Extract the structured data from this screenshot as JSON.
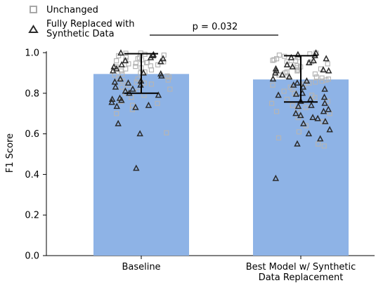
{
  "chart_data": {
    "type": "bar",
    "categories": [
      "Baseline",
      "Best Model w/ Synthetic\nData Replacement"
    ],
    "values": [
      0.895,
      0.868
    ],
    "error_bars": [
      {
        "lower": 0.8,
        "upper": 0.995
      },
      {
        "lower": 0.757,
        "upper": 0.985
      }
    ],
    "ylabel": "F1 Score",
    "xlabel": "",
    "ylim": [
      0.0,
      1.0
    ],
    "yticks": [
      "0.0",
      "0.2",
      "0.4",
      "0.6",
      "0.8",
      "1.0"
    ],
    "bar_color": "#8eb3e6",
    "significance": {
      "label": "p = 0.032",
      "between": [
        0,
        1
      ]
    },
    "legend": {
      "position": "top-left",
      "entries": [
        {
          "label": "Unchanged",
          "marker": "square",
          "color": "#a8a8a8"
        },
        {
          "label": "Fully Replaced with\nSynthetic Data",
          "marker": "triangle",
          "color": "#2b2b2b"
        }
      ]
    },
    "points": {
      "unchanged": [
        [
          0.998,
          0.992,
          0.985,
          0.978,
          0.97,
          0.965,
          0.96,
          0.955,
          0.95,
          0.948,
          0.945,
          0.94,
          0.935,
          0.93,
          0.925,
          0.92,
          0.915,
          0.91,
          0.905,
          0.9,
          0.895,
          0.89,
          0.885,
          0.88,
          0.875,
          0.87,
          0.865,
          0.86,
          0.855,
          0.85,
          0.845,
          0.84,
          0.83,
          0.82,
          0.81,
          0.8,
          0.79,
          0.78,
          0.76,
          0.75,
          0.74,
          0.72,
          0.7,
          0.605,
          0.997,
          0.988,
          0.975,
          0.962,
          0.952,
          0.932
        ],
        [
          0.998,
          0.994,
          0.988,
          0.982,
          0.976,
          0.97,
          0.965,
          0.96,
          0.955,
          0.95,
          0.945,
          0.94,
          0.935,
          0.93,
          0.925,
          0.92,
          0.915,
          0.91,
          0.905,
          0.9,
          0.895,
          0.89,
          0.885,
          0.88,
          0.875,
          0.87,
          0.865,
          0.86,
          0.855,
          0.85,
          0.845,
          0.84,
          0.83,
          0.82,
          0.81,
          0.8,
          0.79,
          0.78,
          0.77,
          0.76,
          0.75,
          0.74,
          0.73,
          0.72,
          0.71,
          0.7,
          0.68,
          0.66,
          0.64,
          0.61,
          0.58,
          0.55,
          0.54,
          0.955,
          0.962
        ]
      ],
      "replaced": [
        [
          0.998,
          0.99,
          0.985,
          0.975,
          0.97,
          0.96,
          0.955,
          0.94,
          0.93,
          0.92,
          0.91,
          0.9,
          0.895,
          0.885,
          0.87,
          0.86,
          0.855,
          0.85,
          0.84,
          0.83,
          0.82,
          0.81,
          0.8,
          0.79,
          0.775,
          0.765,
          0.755,
          0.74,
          0.735,
          0.73,
          0.65,
          0.6,
          0.43,
          0.77
        ],
        [
          0.998,
          0.99,
          0.985,
          0.975,
          0.97,
          0.96,
          0.95,
          0.94,
          0.93,
          0.92,
          0.915,
          0.91,
          0.9,
          0.89,
          0.88,
          0.87,
          0.86,
          0.85,
          0.84,
          0.83,
          0.82,
          0.8,
          0.795,
          0.79,
          0.78,
          0.77,
          0.76,
          0.75,
          0.74,
          0.735,
          0.72,
          0.71,
          0.7,
          0.69,
          0.68,
          0.675,
          0.66,
          0.65,
          0.62,
          0.6,
          0.575,
          0.55,
          0.38,
          0.91
        ]
      ]
    }
  }
}
